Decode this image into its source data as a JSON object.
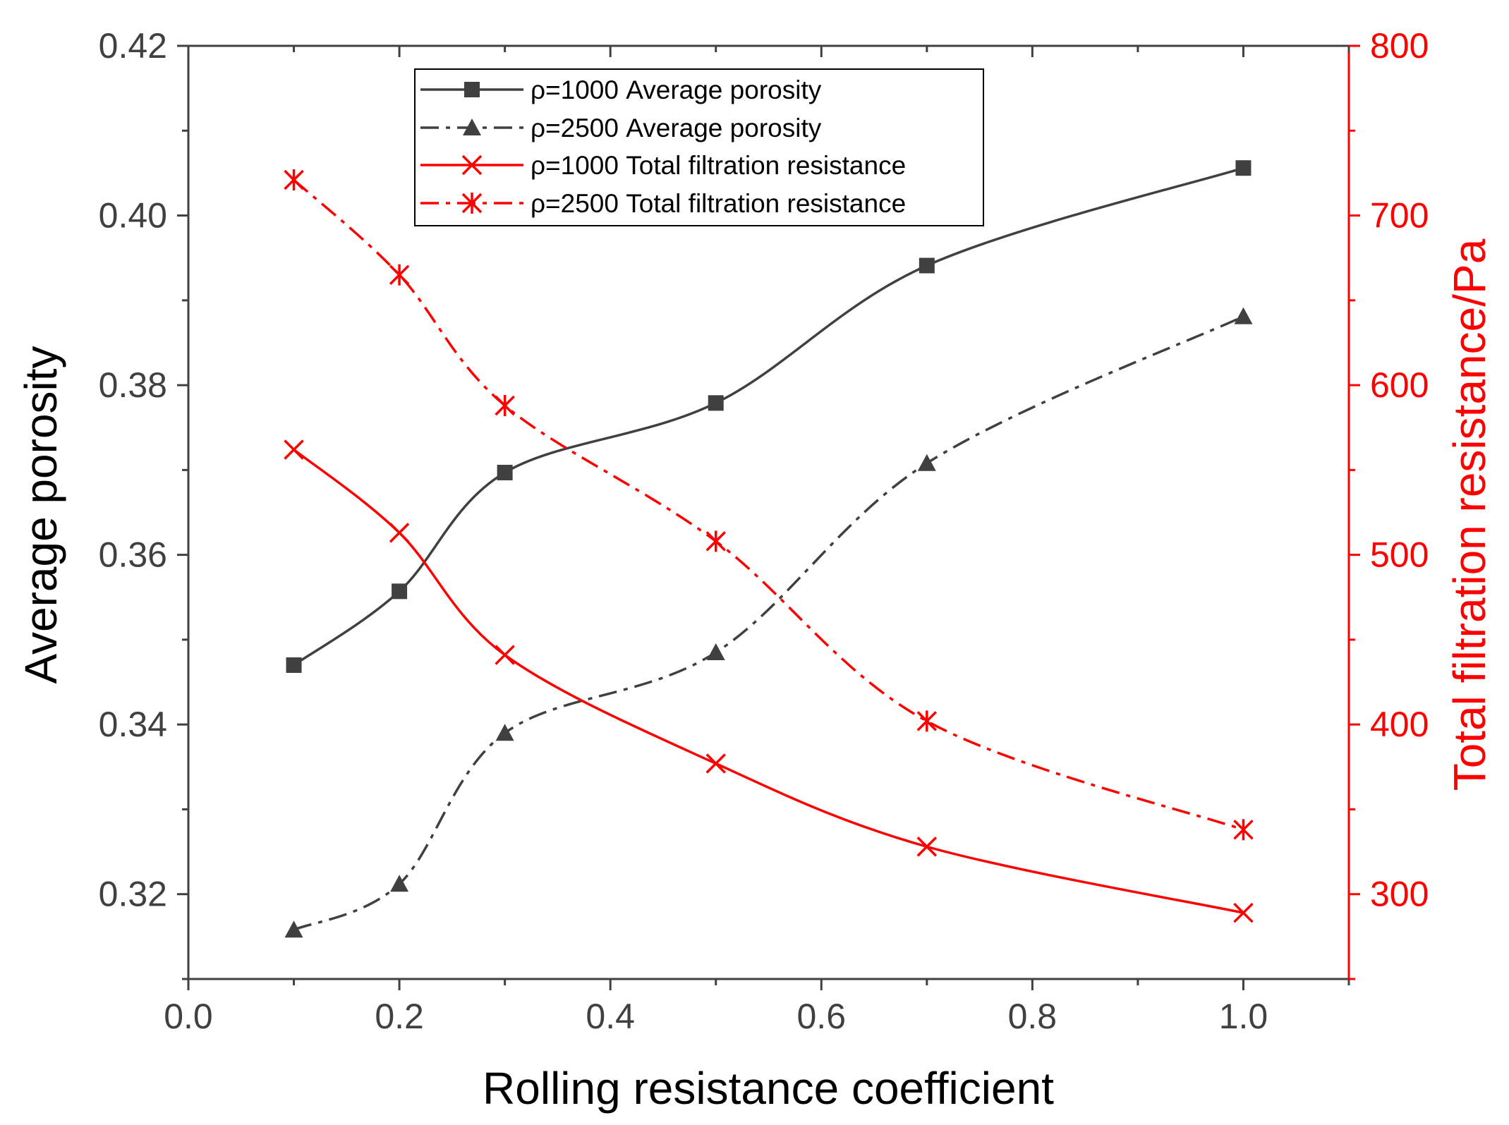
{
  "chart_data": {
    "type": "line",
    "xlabel": "Rolling resistance coefficient",
    "ylabel_left": "Average porosity",
    "ylabel_right": "Total filtration resistance/Pa",
    "xlim": [
      0.0,
      1.1
    ],
    "ylim_left": [
      0.31,
      0.42
    ],
    "ylim_right": [
      250,
      800
    ],
    "x_ticks": [
      "0.0",
      "0.2",
      "0.4",
      "0.6",
      "0.8",
      "1.0"
    ],
    "y_left_ticks": [
      "0.32",
      "0.34",
      "0.36",
      "0.38",
      "0.40",
      "0.42"
    ],
    "y_right_ticks": [
      "300",
      "400",
      "500",
      "600",
      "700",
      "800"
    ],
    "legend_location": "top-center",
    "grid": false,
    "series": [
      {
        "name": "ρ=1000 Average porosity",
        "axis": "left",
        "color": "#404040",
        "line": "solid",
        "marker": "square",
        "x": [
          0.1,
          0.2,
          0.3,
          0.5,
          0.7,
          1.0
        ],
        "y": [
          0.347,
          0.3557,
          0.3697,
          0.3779,
          0.3941,
          0.4056
        ]
      },
      {
        "name": "ρ=2500 Average porosity",
        "axis": "left",
        "color": "#404040",
        "line": "dashdot",
        "marker": "triangle",
        "x": [
          0.1,
          0.2,
          0.3,
          0.5,
          0.7,
          1.0
        ],
        "y": [
          0.3158,
          0.3212,
          0.339,
          0.3485,
          0.3708,
          0.3881
        ]
      },
      {
        "name": "ρ=1000 Total filtration resistance",
        "axis": "right",
        "color": "#ff0000",
        "line": "solid",
        "marker": "x",
        "x": [
          0.1,
          0.2,
          0.3,
          0.5,
          0.7,
          1.0
        ],
        "y": [
          562,
          513,
          441,
          377,
          328,
          289
        ]
      },
      {
        "name": "ρ=2500 Total filtration resistance",
        "axis": "right",
        "color": "#ff0000",
        "line": "dashdot",
        "marker": "asterisk",
        "x": [
          0.1,
          0.2,
          0.3,
          0.5,
          0.7,
          1.0
        ],
        "y": [
          721,
          665,
          588,
          508,
          402,
          338
        ]
      }
    ]
  }
}
